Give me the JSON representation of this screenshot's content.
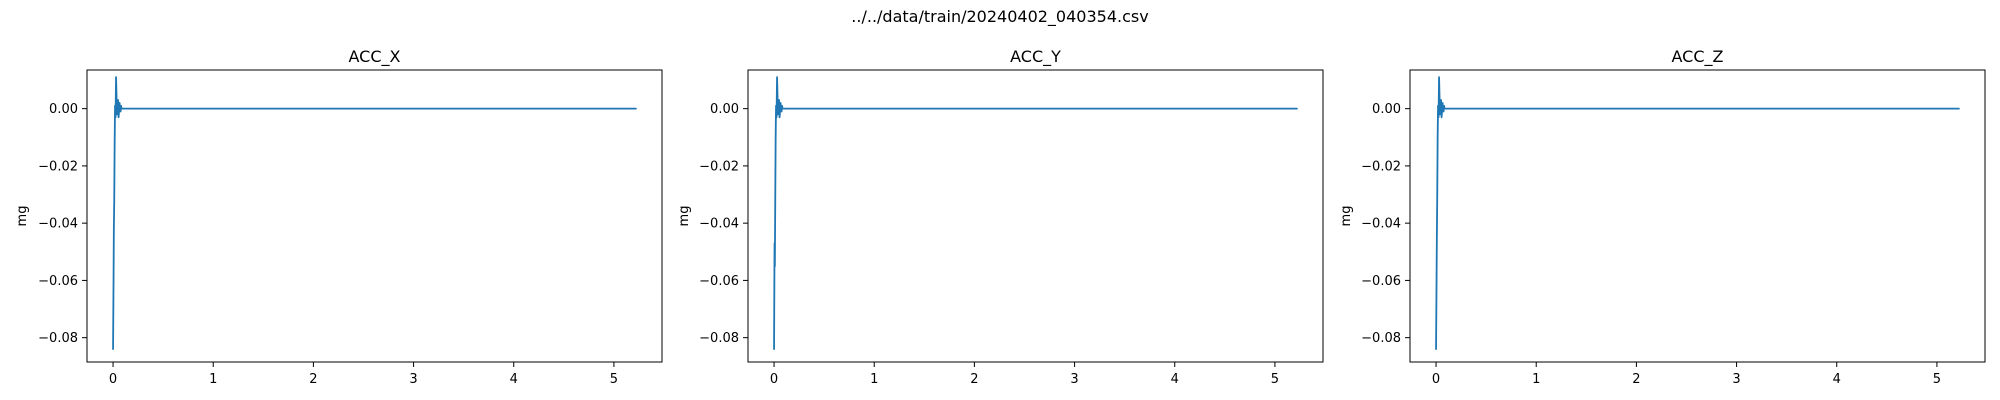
{
  "figure": {
    "suptitle": "../../data/train/20240402_040354.csv"
  },
  "chart_data": [
    {
      "type": "line",
      "title": "ACC_X",
      "xlabel": "",
      "ylabel": "mg",
      "xlim": [
        -0.26,
        5.48
      ],
      "ylim": [
        -0.0885,
        0.0135
      ],
      "xticks": [
        0,
        1,
        2,
        3,
        4,
        5
      ],
      "yticks": [
        -0.08,
        -0.06,
        -0.04,
        -0.02,
        0.0
      ],
      "xtick_labels": [
        "0",
        "1",
        "2",
        "3",
        "4",
        "5"
      ],
      "ytick_labels": [
        "−0.08",
        "−0.06",
        "−0.04",
        "−0.02",
        "0.00"
      ],
      "grid": false,
      "color": "#1f77b4",
      "series": [
        {
          "x": [
            0.0,
            0.005,
            0.008,
            0.012,
            0.016,
            0.02,
            0.025,
            0.03,
            0.035,
            0.04,
            0.045,
            0.05,
            0.055,
            0.06,
            0.065,
            0.07,
            0.075,
            0.08,
            0.085,
            0.09,
            0.1,
            0.12,
            0.15,
            0.2,
            0.5,
            1.0,
            2.0,
            3.0,
            4.0,
            5.0,
            5.22
          ],
          "y": [
            -0.084,
            -0.06,
            -0.042,
            -0.032,
            -0.012,
            0.001,
            -0.003,
            0.011,
            0.004,
            -0.002,
            0.001,
            0.003,
            -0.003,
            -0.001,
            0.002,
            0.0,
            -0.001,
            0.001,
            0.0,
            0.0,
            0.0,
            0.0,
            0.0,
            0.0,
            0.0,
            0.0,
            0.0,
            0.0,
            0.0,
            0.0,
            0.0
          ]
        }
      ]
    },
    {
      "type": "line",
      "title": "ACC_Y",
      "xlabel": "",
      "ylabel": "mg",
      "xlim": [
        -0.26,
        5.48
      ],
      "ylim": [
        -0.0885,
        0.0135
      ],
      "xticks": [
        0,
        1,
        2,
        3,
        4,
        5
      ],
      "yticks": [
        -0.08,
        -0.06,
        -0.04,
        -0.02,
        0.0
      ],
      "xtick_labels": [
        "0",
        "1",
        "2",
        "3",
        "4",
        "5"
      ],
      "ytick_labels": [
        "−0.08",
        "−0.06",
        "−0.04",
        "−0.02",
        "0.00"
      ],
      "grid": false,
      "color": "#1f77b4",
      "series": [
        {
          "x": [
            0.0,
            0.005,
            0.008,
            0.012,
            0.016,
            0.02,
            0.025,
            0.03,
            0.035,
            0.04,
            0.045,
            0.05,
            0.055,
            0.06,
            0.065,
            0.07,
            0.075,
            0.08,
            0.085,
            0.09,
            0.1,
            0.12,
            0.15,
            0.2,
            0.5,
            1.0,
            2.0,
            3.0,
            4.0,
            5.0,
            5.22
          ],
          "y": [
            -0.084,
            -0.047,
            -0.055,
            -0.032,
            -0.01,
            0.001,
            -0.003,
            0.011,
            0.004,
            -0.002,
            0.001,
            0.003,
            -0.003,
            -0.001,
            0.002,
            0.0,
            -0.001,
            0.001,
            0.0,
            0.0,
            0.0,
            0.0,
            0.0,
            0.0,
            0.0,
            0.0,
            0.0,
            0.0,
            0.0,
            0.0,
            0.0
          ]
        }
      ]
    },
    {
      "type": "line",
      "title": "ACC_Z",
      "xlabel": "",
      "ylabel": "mg",
      "xlim": [
        -0.26,
        5.48
      ],
      "ylim": [
        -0.0885,
        0.0135
      ],
      "xticks": [
        0,
        1,
        2,
        3,
        4,
        5
      ],
      "yticks": [
        -0.08,
        -0.06,
        -0.04,
        -0.02,
        0.0
      ],
      "xtick_labels": [
        "0",
        "1",
        "2",
        "3",
        "4",
        "5"
      ],
      "ytick_labels": [
        "−0.08",
        "−0.06",
        "−0.04",
        "−0.02",
        "0.00"
      ],
      "grid": false,
      "color": "#1f77b4",
      "series": [
        {
          "x": [
            0.0,
            0.005,
            0.008,
            0.012,
            0.016,
            0.02,
            0.025,
            0.03,
            0.035,
            0.04,
            0.045,
            0.05,
            0.055,
            0.06,
            0.065,
            0.07,
            0.075,
            0.08,
            0.085,
            0.09,
            0.1,
            0.12,
            0.15,
            0.2,
            0.5,
            1.0,
            2.0,
            3.0,
            4.0,
            5.0,
            5.22
          ],
          "y": [
            -0.084,
            -0.06,
            -0.045,
            -0.03,
            -0.01,
            0.001,
            -0.003,
            0.011,
            0.004,
            -0.002,
            0.001,
            0.003,
            -0.003,
            -0.001,
            0.002,
            0.0,
            -0.001,
            0.001,
            0.0,
            0.0,
            0.0,
            0.0,
            0.0,
            0.0,
            0.0,
            0.0,
            0.0,
            0.0,
            0.0,
            0.0,
            0.0
          ]
        }
      ]
    }
  ]
}
